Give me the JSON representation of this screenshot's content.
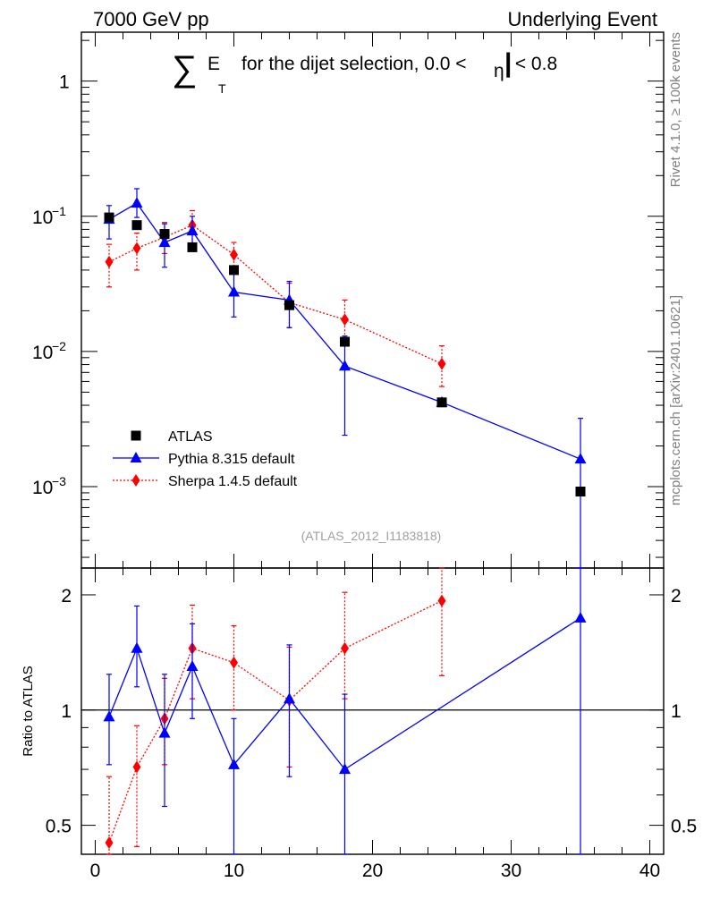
{
  "header": {
    "left": "7000 GeV pp",
    "right": "Underlying Event"
  },
  "side_labels": {
    "top": "Rivet 4.1.0, ≥ 100k events",
    "bottom": "mcplots.cern.ch [arXiv:2401.10621]"
  },
  "chart_data": [
    {
      "type": "scatter",
      "panel": "main",
      "title_parts": {
        "sum": "∑",
        "e": "E",
        "sub_t": "T",
        "text": "for the dijet selection, 0.0 <",
        "eta": "η",
        "bar": "|",
        "text2": " < 0.8"
      },
      "yscale": "log",
      "xlim": [
        -1,
        41
      ],
      "ylim": [
        0.00025,
        2.3
      ],
      "yticks": [
        {
          "value": 1,
          "mant": "1",
          "exp": ""
        },
        {
          "value": 0.1,
          "mant": "10",
          "exp": "−1"
        },
        {
          "value": 0.01,
          "mant": "10",
          "exp": "−2"
        },
        {
          "value": 0.001,
          "mant": "10",
          "exp": "−3"
        }
      ],
      "watermark": "(ATLAS_2012_I1183818)",
      "legend_position": "lower-left",
      "series": [
        {
          "name": "ATLAS",
          "color": "#000000",
          "marker": "square",
          "line": "none",
          "x": [
            1,
            3,
            5,
            7,
            10,
            14,
            18,
            25,
            35
          ],
          "y": [
            0.098,
            0.086,
            0.074,
            0.059,
            0.04,
            0.022,
            0.0118,
            0.0042,
            0.00092
          ]
        },
        {
          "name": "Pythia 8.315 default",
          "color": "#0000ff",
          "marker": "triangle",
          "line": "solid",
          "x": [
            1,
            3,
            5,
            7,
            10,
            14,
            18,
            25,
            35
          ],
          "y": [
            0.095,
            0.125,
            0.064,
            0.078,
            0.0275,
            0.024,
            0.0078,
            0.0042,
            0.0016
          ],
          "yerr_low": [
            0.068,
            0.098,
            0.042,
            0.056,
            0.018,
            0.015,
            0.0024,
            0.0042,
            0.00025
          ],
          "yerr_high": [
            0.12,
            0.16,
            0.088,
            0.1,
            0.04,
            0.033,
            0.013,
            0.0042,
            0.0032
          ]
        },
        {
          "name": "Sherpa 1.4.5 default",
          "color": "#ff0000",
          "marker": "diamond",
          "line": "dotted",
          "x": [
            1,
            3,
            5,
            7,
            10,
            14,
            18,
            25,
            35
          ],
          "y": [
            0.046,
            0.058,
            0.07,
            0.086,
            0.052,
            0.023,
            0.0172,
            0.0081,
            null
          ],
          "yerr_low": [
            0.03,
            0.04,
            0.053,
            0.063,
            0.04,
            0.015,
            0.0125,
            0.0055,
            null
          ],
          "yerr_high": [
            0.062,
            0.075,
            0.09,
            0.11,
            0.064,
            0.032,
            0.024,
            0.011,
            null
          ]
        }
      ]
    },
    {
      "type": "line",
      "panel": "ratio",
      "ylabel": "Ratio to ATLAS",
      "yscale": "log",
      "xlim": [
        -1,
        41
      ],
      "ylim": [
        0.42,
        2.35
      ],
      "xticks": [
        "0",
        "10",
        "20",
        "30",
        "40"
      ],
      "xtick_values": [
        0,
        10,
        20,
        30,
        40
      ],
      "yticks": [
        "0.5",
        "1",
        "2"
      ],
      "ytick_values": [
        0.5,
        1,
        2
      ],
      "reference_line": 1,
      "series": [
        {
          "name": "Pythia 8.315 default",
          "color": "#0000ff",
          "marker": "triangle",
          "line": "solid",
          "x": [
            1,
            3,
            5,
            7,
            10,
            14,
            18,
            35
          ],
          "y": [
            0.96,
            1.45,
            0.87,
            1.3,
            0.72,
            1.07,
            0.7,
            1.74
          ],
          "yerr_low": [
            0.72,
            1.15,
            0.56,
            0.95,
            0.37,
            0.67,
            0.3,
            0.3
          ],
          "yerr_high": [
            1.24,
            1.87,
            1.24,
            1.68,
            0.95,
            1.48,
            1.1,
            2.4
          ]
        },
        {
          "name": "Sherpa 1.4.5 default",
          "color": "#ff0000",
          "marker": "diamond",
          "line": "dotted",
          "x": [
            1,
            3,
            5,
            7,
            10,
            14,
            18,
            25
          ],
          "y": [
            0.45,
            0.71,
            0.95,
            1.45,
            1.33,
            1.06,
            1.45,
            1.93
          ],
          "yerr_low": [
            0.38,
            0.44,
            0.72,
            1.07,
            1.0,
            0.71,
            1.07,
            1.23
          ],
          "yerr_high": [
            0.67,
            0.91,
            1.21,
            1.88,
            1.66,
            1.46,
            2.03,
            2.4
          ]
        }
      ]
    }
  ]
}
